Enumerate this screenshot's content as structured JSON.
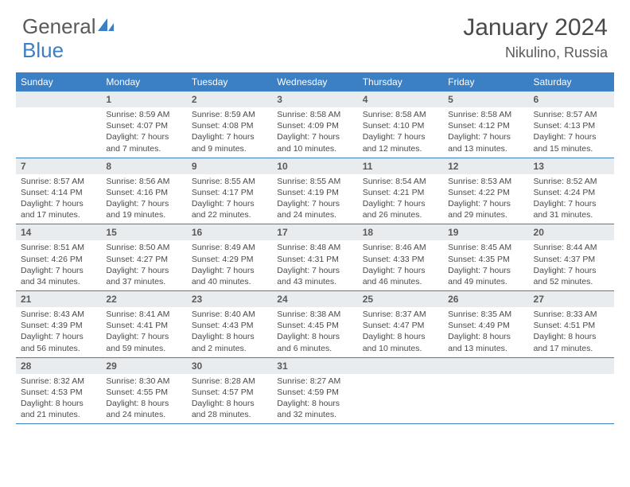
{
  "logo": {
    "part1": "General",
    "part2": "Blue"
  },
  "title": "January 2024",
  "location": "Nikulino, Russia",
  "colors": {
    "header_bg": "#3b7fc4",
    "header_text": "#ffffff",
    "daynum_bg": "#e8ecef",
    "text": "#4a4a4a",
    "rule": "#3b7fc4"
  },
  "day_headers": [
    "Sunday",
    "Monday",
    "Tuesday",
    "Wednesday",
    "Thursday",
    "Friday",
    "Saturday"
  ],
  "weeks": [
    [
      {
        "n": "",
        "sr": "",
        "ss": "",
        "dl": ""
      },
      {
        "n": "1",
        "sr": "Sunrise: 8:59 AM",
        "ss": "Sunset: 4:07 PM",
        "dl": "Daylight: 7 hours and 7 minutes."
      },
      {
        "n": "2",
        "sr": "Sunrise: 8:59 AM",
        "ss": "Sunset: 4:08 PM",
        "dl": "Daylight: 7 hours and 9 minutes."
      },
      {
        "n": "3",
        "sr": "Sunrise: 8:58 AM",
        "ss": "Sunset: 4:09 PM",
        "dl": "Daylight: 7 hours and 10 minutes."
      },
      {
        "n": "4",
        "sr": "Sunrise: 8:58 AM",
        "ss": "Sunset: 4:10 PM",
        "dl": "Daylight: 7 hours and 12 minutes."
      },
      {
        "n": "5",
        "sr": "Sunrise: 8:58 AM",
        "ss": "Sunset: 4:12 PM",
        "dl": "Daylight: 7 hours and 13 minutes."
      },
      {
        "n": "6",
        "sr": "Sunrise: 8:57 AM",
        "ss": "Sunset: 4:13 PM",
        "dl": "Daylight: 7 hours and 15 minutes."
      }
    ],
    [
      {
        "n": "7",
        "sr": "Sunrise: 8:57 AM",
        "ss": "Sunset: 4:14 PM",
        "dl": "Daylight: 7 hours and 17 minutes."
      },
      {
        "n": "8",
        "sr": "Sunrise: 8:56 AM",
        "ss": "Sunset: 4:16 PM",
        "dl": "Daylight: 7 hours and 19 minutes."
      },
      {
        "n": "9",
        "sr": "Sunrise: 8:55 AM",
        "ss": "Sunset: 4:17 PM",
        "dl": "Daylight: 7 hours and 22 minutes."
      },
      {
        "n": "10",
        "sr": "Sunrise: 8:55 AM",
        "ss": "Sunset: 4:19 PM",
        "dl": "Daylight: 7 hours and 24 minutes."
      },
      {
        "n": "11",
        "sr": "Sunrise: 8:54 AM",
        "ss": "Sunset: 4:21 PM",
        "dl": "Daylight: 7 hours and 26 minutes."
      },
      {
        "n": "12",
        "sr": "Sunrise: 8:53 AM",
        "ss": "Sunset: 4:22 PM",
        "dl": "Daylight: 7 hours and 29 minutes."
      },
      {
        "n": "13",
        "sr": "Sunrise: 8:52 AM",
        "ss": "Sunset: 4:24 PM",
        "dl": "Daylight: 7 hours and 31 minutes."
      }
    ],
    [
      {
        "n": "14",
        "sr": "Sunrise: 8:51 AM",
        "ss": "Sunset: 4:26 PM",
        "dl": "Daylight: 7 hours and 34 minutes."
      },
      {
        "n": "15",
        "sr": "Sunrise: 8:50 AM",
        "ss": "Sunset: 4:27 PM",
        "dl": "Daylight: 7 hours and 37 minutes."
      },
      {
        "n": "16",
        "sr": "Sunrise: 8:49 AM",
        "ss": "Sunset: 4:29 PM",
        "dl": "Daylight: 7 hours and 40 minutes."
      },
      {
        "n": "17",
        "sr": "Sunrise: 8:48 AM",
        "ss": "Sunset: 4:31 PM",
        "dl": "Daylight: 7 hours and 43 minutes."
      },
      {
        "n": "18",
        "sr": "Sunrise: 8:46 AM",
        "ss": "Sunset: 4:33 PM",
        "dl": "Daylight: 7 hours and 46 minutes."
      },
      {
        "n": "19",
        "sr": "Sunrise: 8:45 AM",
        "ss": "Sunset: 4:35 PM",
        "dl": "Daylight: 7 hours and 49 minutes."
      },
      {
        "n": "20",
        "sr": "Sunrise: 8:44 AM",
        "ss": "Sunset: 4:37 PM",
        "dl": "Daylight: 7 hours and 52 minutes."
      }
    ],
    [
      {
        "n": "21",
        "sr": "Sunrise: 8:43 AM",
        "ss": "Sunset: 4:39 PM",
        "dl": "Daylight: 7 hours and 56 minutes."
      },
      {
        "n": "22",
        "sr": "Sunrise: 8:41 AM",
        "ss": "Sunset: 4:41 PM",
        "dl": "Daylight: 7 hours and 59 minutes."
      },
      {
        "n": "23",
        "sr": "Sunrise: 8:40 AM",
        "ss": "Sunset: 4:43 PM",
        "dl": "Daylight: 8 hours and 2 minutes."
      },
      {
        "n": "24",
        "sr": "Sunrise: 8:38 AM",
        "ss": "Sunset: 4:45 PM",
        "dl": "Daylight: 8 hours and 6 minutes."
      },
      {
        "n": "25",
        "sr": "Sunrise: 8:37 AM",
        "ss": "Sunset: 4:47 PM",
        "dl": "Daylight: 8 hours and 10 minutes."
      },
      {
        "n": "26",
        "sr": "Sunrise: 8:35 AM",
        "ss": "Sunset: 4:49 PM",
        "dl": "Daylight: 8 hours and 13 minutes."
      },
      {
        "n": "27",
        "sr": "Sunrise: 8:33 AM",
        "ss": "Sunset: 4:51 PM",
        "dl": "Daylight: 8 hours and 17 minutes."
      }
    ],
    [
      {
        "n": "28",
        "sr": "Sunrise: 8:32 AM",
        "ss": "Sunset: 4:53 PM",
        "dl": "Daylight: 8 hours and 21 minutes."
      },
      {
        "n": "29",
        "sr": "Sunrise: 8:30 AM",
        "ss": "Sunset: 4:55 PM",
        "dl": "Daylight: 8 hours and 24 minutes."
      },
      {
        "n": "30",
        "sr": "Sunrise: 8:28 AM",
        "ss": "Sunset: 4:57 PM",
        "dl": "Daylight: 8 hours and 28 minutes."
      },
      {
        "n": "31",
        "sr": "Sunrise: 8:27 AM",
        "ss": "Sunset: 4:59 PM",
        "dl": "Daylight: 8 hours and 32 minutes."
      },
      {
        "n": "",
        "sr": "",
        "ss": "",
        "dl": ""
      },
      {
        "n": "",
        "sr": "",
        "ss": "",
        "dl": ""
      },
      {
        "n": "",
        "sr": "",
        "ss": "",
        "dl": ""
      }
    ]
  ]
}
